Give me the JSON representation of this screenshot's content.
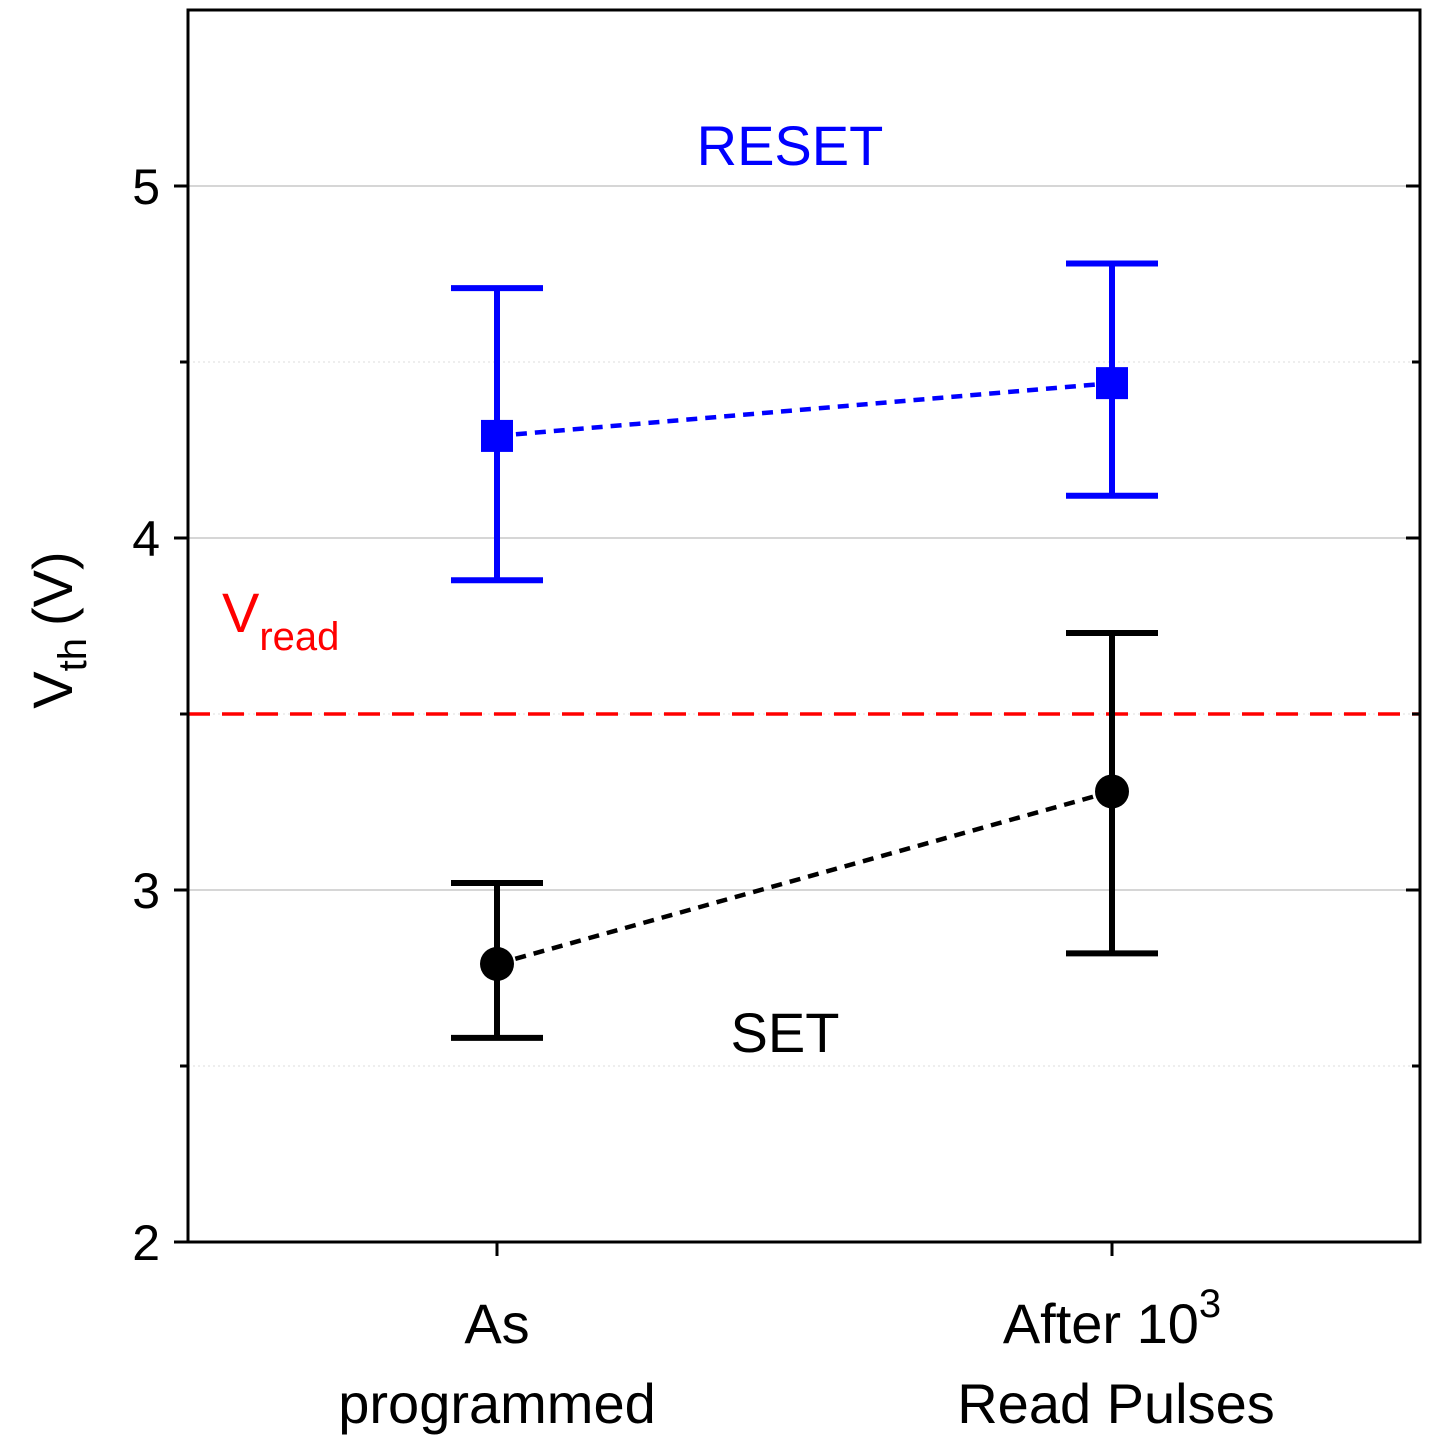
{
  "chart_data": {
    "type": "scatter",
    "categories": [
      {
        "line1": "As",
        "line2": "programmed",
        "line2_sup": ""
      },
      {
        "line1": "After 10",
        "line1_sup": "3",
        "line2": "Read Pulses"
      }
    ],
    "ylabel": {
      "main": "V",
      "sub": "th",
      "unit": "(V)"
    },
    "ylim": [
      2,
      5.5
    ],
    "yticks": [
      2,
      3,
      4,
      5
    ],
    "yminor": [
      2.5,
      3.5,
      4.5
    ],
    "grid": true,
    "series": [
      {
        "name": "RESET",
        "color": "#0000ff",
        "marker": "square",
        "values": [
          4.29,
          4.44
        ],
        "err_low": [
          3.88,
          4.12
        ],
        "err_high": [
          4.71,
          4.78
        ]
      },
      {
        "name": "SET",
        "color": "#000000",
        "marker": "circle",
        "values": [
          2.79,
          3.28
        ],
        "err_low": [
          2.58,
          2.82
        ],
        "err_high": [
          3.02,
          3.73
        ]
      }
    ],
    "reference_line": {
      "label_main": "V",
      "label_sub": "read",
      "value": 3.5,
      "color": "#ff0000"
    }
  }
}
